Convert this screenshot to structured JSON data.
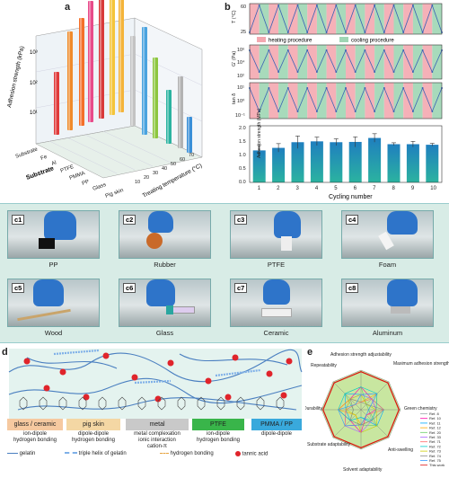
{
  "panel_a": {
    "label": "a",
    "zlabel": "Adhesion strength (kPa)",
    "ztick_labels": [
      "10¹",
      "10²",
      "10³"
    ],
    "xlabel": "Substrate",
    "ylabel": "Treating temperature (°C)",
    "ytick_labels": [
      "10",
      "20",
      "30",
      "40",
      "50",
      "60",
      "70"
    ],
    "substrates": [
      "Substrate",
      "Fe",
      "Al",
      "PTFE",
      "PMMA",
      "PP",
      "Glass",
      "Pig skin"
    ]
  },
  "panel_b": {
    "label": "b",
    "legend_heating": "heating procedure",
    "legend_cooling": "cooling procedure",
    "row1_ylabel": "T (°C)",
    "row1_ticks": [
      "60",
      "25"
    ],
    "row2_ylabel": "G' (Pa)",
    "row2_ticks": [
      "10⁶",
      "10⁴",
      "10²"
    ],
    "row3_ylabel": "tan δ",
    "row3_ticks": [
      "10¹",
      "10⁰",
      "10⁻¹"
    ],
    "row4_ylabel": "Adhesion strength (MPa)",
    "row4_ticks": [
      "2.0",
      "1.5",
      "1.0",
      "0.5",
      "0.0"
    ],
    "xlabel": "Cycling number",
    "xtick_labels": [
      "1",
      "2",
      "3",
      "4",
      "5",
      "6",
      "7",
      "8",
      "9",
      "10"
    ]
  },
  "chart_data": {
    "type": "bar",
    "categories": [
      "1",
      "2",
      "3",
      "4",
      "5",
      "6",
      "7",
      "8",
      "9",
      "10"
    ],
    "values": [
      1.13,
      1.22,
      1.42,
      1.45,
      1.42,
      1.43,
      1.57,
      1.35,
      1.35,
      1.33
    ],
    "errors": [
      0.2,
      0.15,
      0.22,
      0.15,
      0.12,
      0.18,
      0.15,
      0.05,
      0.1,
      0.05
    ],
    "xlabel": "Cycling number",
    "ylabel": "Adhesion strength (MPa)",
    "ylim": [
      0,
      2.0
    ],
    "bar_color": "#2bb3a0"
  },
  "panel_c": [
    {
      "tag": "c1",
      "caption": "PP"
    },
    {
      "tag": "c2",
      "caption": "Rubber"
    },
    {
      "tag": "c3",
      "caption": "PTFE"
    },
    {
      "tag": "c4",
      "caption": "Foam"
    },
    {
      "tag": "c5",
      "caption": "Wood"
    },
    {
      "tag": "c6",
      "caption": "Glass"
    },
    {
      "tag": "c7",
      "caption": "Ceramic"
    },
    {
      "tag": "c8",
      "caption": "Aluminum"
    }
  ],
  "panel_d": {
    "label": "d",
    "substrates": [
      "glass / ceramic",
      "pig skin",
      "metal",
      "PTFE",
      "PMMA / PP"
    ],
    "substrate_colors": [
      "#f6c9a0",
      "#f4d7a4",
      "#c9c9c9",
      "#39b54a",
      "#39a9dc"
    ],
    "mechanisms": [
      "ion-dipole\nhydrogen bonding",
      "dipole-dipole\nhydrogen bonding",
      "metal complexation\nionic interaction\ncation-π",
      "ion-dipole\nhydrogen bonding",
      "dipole-dipole"
    ],
    "legend": [
      "gelatin",
      "triple helix of gelatin",
      "hydrogen bonding",
      "tannic acid"
    ]
  },
  "panel_e": {
    "label": "e",
    "axes": [
      "Adhesion strength adjustability",
      "Maximum adhesion strength",
      "Green chemistry",
      "Anti-swelling",
      "Solvent adaptability",
      "Substrate adaptability",
      "Durability",
      "Repeatability"
    ],
    "legend": [
      "Ref. 8",
      "Ref. 10",
      "Ref. 11",
      "Ref. 12",
      "Ref. 20",
      "Ref. 33",
      "Ref. 71",
      "Ref. 72",
      "Ref. 73",
      "Ref. 74",
      "Ref. 75",
      "This work"
    ]
  }
}
